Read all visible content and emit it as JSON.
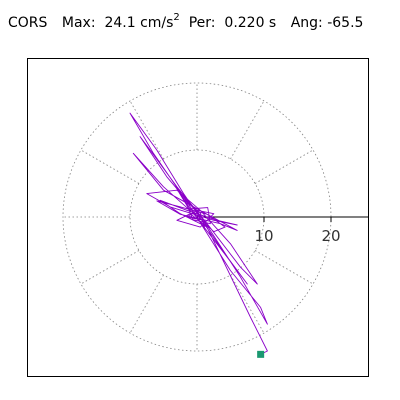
{
  "header": {
    "station": "CORS",
    "max_label": "Max:",
    "max_value": "24.1 cm/s",
    "max_exp": "2",
    "per_label": "Per:",
    "per_value": "0.220 s",
    "ang_label": "Ang:",
    "ang_value": "-65.5"
  },
  "chart_data": {
    "type": "polar-orbit",
    "title": "CORS  Max: 24.1 cm/s2  Per: 0.220 s  Ang: -65.5",
    "radial_ticks": [
      10,
      20
    ],
    "rings": [
      10,
      20
    ],
    "spoke_step_deg": 30,
    "max_amplitude": 24.1,
    "period_s": 0.22,
    "angle_deg": -65.5,
    "colors": {
      "trace": "#8a00c8",
      "end_marker": "#1a9870",
      "grid": "#808080"
    },
    "trace": [
      [
        0.0,
        0.0
      ],
      [
        1.2,
        -1.8
      ],
      [
        0.5,
        0.6
      ],
      [
        -1.8,
        2.5
      ],
      [
        -0.6,
        -0.4
      ],
      [
        2.0,
        -1.0
      ],
      [
        1.6,
        1.4
      ],
      [
        -1.2,
        1.2
      ],
      [
        -3.2,
        4.5
      ],
      [
        -1.0,
        1.2
      ],
      [
        2.5,
        -2.2
      ],
      [
        4.2,
        -1.5
      ],
      [
        1.5,
        0.4
      ],
      [
        -2.8,
        1.6
      ],
      [
        -6.0,
        2.4
      ],
      [
        -2.5,
        0.4
      ],
      [
        3.5,
        -1.0
      ],
      [
        6.0,
        -2.0
      ],
      [
        1.5,
        0.4
      ],
      [
        -5.0,
        4.0
      ],
      [
        -9.5,
        9.5
      ],
      [
        -5.0,
        4.5
      ],
      [
        -0.5,
        0.5
      ],
      [
        4.5,
        -6.0
      ],
      [
        7.5,
        -10.0
      ],
      [
        3.8,
        -5.0
      ],
      [
        -2.0,
        3.5
      ],
      [
        -6.0,
        10.0
      ],
      [
        -10.0,
        15.5
      ],
      [
        -6.5,
        9.5
      ],
      [
        -1.0,
        1.5
      ],
      [
        5.0,
        -8.0
      ],
      [
        9.5,
        -13.5
      ],
      [
        10.5,
        -16.0
      ],
      [
        6.5,
        -9.0
      ],
      [
        1.0,
        -0.5
      ],
      [
        -4.5,
        6.0
      ],
      [
        -8.5,
        12.0
      ],
      [
        -7.0,
        10.0
      ],
      [
        -3.0,
        4.5
      ],
      [
        1.5,
        -1.0
      ],
      [
        6.5,
        -7.5
      ],
      [
        9.0,
        -10.0
      ],
      [
        5.0,
        -4.0
      ],
      [
        0.5,
        1.0
      ],
      [
        -3.0,
        4.0
      ],
      [
        -7.5,
        3.5
      ],
      [
        -4.0,
        1.5
      ],
      [
        2.5,
        -0.5
      ],
      [
        6.0,
        -1.2
      ],
      [
        3.0,
        -0.5
      ],
      [
        -1.5,
        1.0
      ],
      [
        -5.5,
        2.5
      ],
      [
        -2.5,
        0.5
      ],
      [
        1.5,
        -1.5
      ],
      [
        -1.0,
        0.5
      ],
      [
        -3.0,
        -0.5
      ],
      [
        0.5,
        -1.5
      ],
      [
        2.5,
        0.5
      ],
      [
        0.0,
        1.0
      ],
      [
        -1.5,
        0.0
      ],
      [
        1.0,
        -0.5
      ],
      [
        8.0,
        -15.0
      ],
      [
        10.5,
        -20.0
      ],
      [
        9.5,
        -20.5
      ]
    ],
    "end_point": [
      9.5,
      -20.5
    ]
  }
}
